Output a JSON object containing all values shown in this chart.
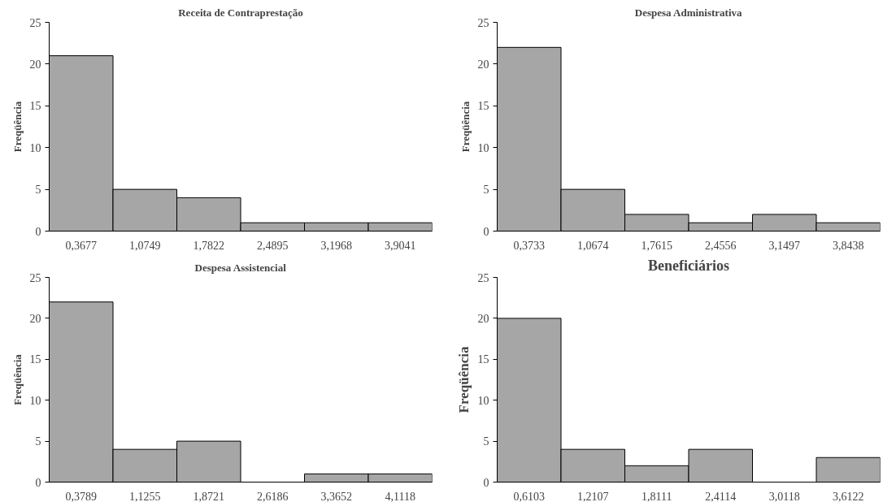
{
  "chart_data": [
    {
      "type": "bar",
      "title": "Receita de Contraprestação",
      "ylabel": "Freqüência",
      "categories": [
        "0,3677",
        "1,0749",
        "1,7822",
        "2,4895",
        "3,1968",
        "3,9041"
      ],
      "values": [
        21,
        5,
        4,
        1,
        1,
        1
      ],
      "color": "#a6a6a6",
      "ylim": [
        0,
        25
      ],
      "yticks": [
        0,
        5,
        10,
        15,
        20,
        25
      ],
      "grid": false
    },
    {
      "type": "bar",
      "title": "Despesa Administrativa",
      "ylabel": "Freqüência",
      "categories": [
        "0,3733",
        "1,0674",
        "1,7615",
        "2,4556",
        "3,1497",
        "3,8438"
      ],
      "values": [
        22,
        5,
        2,
        1,
        2,
        1
      ],
      "color": "#a6a6a6",
      "ylim": [
        0,
        25
      ],
      "yticks": [
        0,
        5,
        10,
        15,
        20,
        25
      ],
      "grid": false
    },
    {
      "type": "bar",
      "title": "Despesa Assistencial",
      "ylabel": "Freqüência",
      "categories": [
        "0,3789",
        "1,1255",
        "1,8721",
        "2,6186",
        "3,3652",
        "4,1118"
      ],
      "values": [
        22,
        4,
        5,
        0,
        1,
        1
      ],
      "color": "#a6a6a6",
      "ylim": [
        0,
        25
      ],
      "yticks": [
        0,
        5,
        10,
        15,
        20,
        25
      ],
      "grid": false
    },
    {
      "type": "bar",
      "title": "Beneficiários",
      "ylabel": "Freqüência",
      "categories": [
        "0,6103",
        "1,2107",
        "1,8111",
        "2,4114",
        "3,0118",
        "3,6122"
      ],
      "values": [
        20,
        4,
        2,
        4,
        0,
        3
      ],
      "color": "#a6a6a6",
      "ylim": [
        0,
        25
      ],
      "yticks": [
        0,
        5,
        10,
        15,
        20,
        25
      ],
      "grid": false
    }
  ]
}
